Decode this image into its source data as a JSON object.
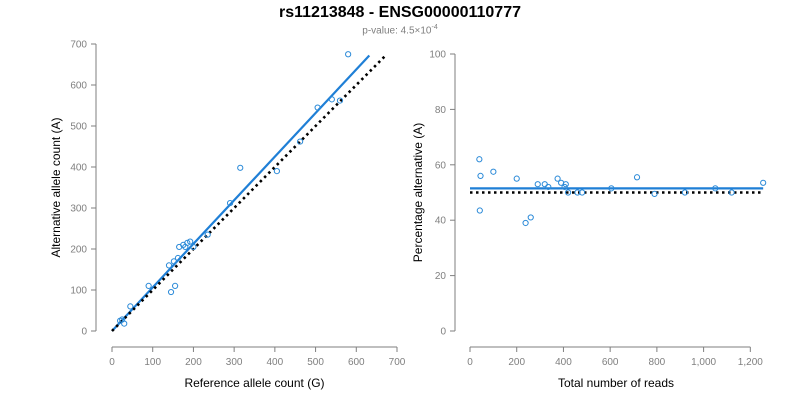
{
  "title": "rs11213848 - ENSG00000110777",
  "subtitle": {
    "prefix": "p-value: 4.5×10",
    "exponent": "-4"
  },
  "colors": {
    "points": "#2b8ad8",
    "fit_line": "#1f7fd6",
    "reference_line": "#000000",
    "axis": "#7f7f7f"
  },
  "chart_data": [
    {
      "type": "scatter",
      "xlabel": "Reference allele count (G)",
      "ylabel": "Alternative allele count (A)",
      "xlim": [
        0,
        700
      ],
      "ylim": [
        0,
        700
      ],
      "xticks": [
        0,
        100,
        200,
        300,
        400,
        500,
        600,
        700
      ],
      "yticks": [
        0,
        100,
        200,
        300,
        400,
        500,
        600,
        700
      ],
      "xtick_labels": [
        "0",
        "100",
        "200",
        "300",
        "400",
        "500",
        "600",
        "700"
      ],
      "ytick_labels": [
        "0",
        "100",
        "200",
        "300",
        "400",
        "500",
        "600",
        "700"
      ],
      "grid": false,
      "points": [
        {
          "x": 20,
          "y": 25
        },
        {
          "x": 25,
          "y": 28
        },
        {
          "x": 30,
          "y": 18
        },
        {
          "x": 45,
          "y": 60
        },
        {
          "x": 90,
          "y": 110
        },
        {
          "x": 140,
          "y": 160
        },
        {
          "x": 145,
          "y": 95
        },
        {
          "x": 152,
          "y": 170
        },
        {
          "x": 155,
          "y": 110
        },
        {
          "x": 162,
          "y": 178
        },
        {
          "x": 165,
          "y": 205
        },
        {
          "x": 175,
          "y": 210
        },
        {
          "x": 180,
          "y": 205
        },
        {
          "x": 185,
          "y": 215
        },
        {
          "x": 192,
          "y": 218
        },
        {
          "x": 200,
          "y": 205
        },
        {
          "x": 235,
          "y": 235
        },
        {
          "x": 290,
          "y": 312
        },
        {
          "x": 315,
          "y": 398
        },
        {
          "x": 405,
          "y": 390
        },
        {
          "x": 462,
          "y": 462
        },
        {
          "x": 505,
          "y": 545
        },
        {
          "x": 540,
          "y": 565
        },
        {
          "x": 560,
          "y": 562
        },
        {
          "x": 580,
          "y": 675
        }
      ],
      "fit_line": {
        "x": [
          0,
          632
        ],
        "y": [
          0,
          672
        ]
      },
      "reference_line": {
        "x": [
          0,
          672
        ],
        "y": [
          0,
          672
        ]
      }
    },
    {
      "type": "scatter",
      "xlabel": "Total number of reads",
      "ylabel": "Percentage alternative (A)",
      "xlim": [
        0,
        1250
      ],
      "ylim": [
        0,
        100
      ],
      "xticks": [
        0,
        200,
        400,
        600,
        800,
        1000,
        1200
      ],
      "yticks": [
        0,
        20,
        40,
        60,
        80,
        100
      ],
      "xtick_labels": [
        "0",
        "200",
        "400",
        "600",
        "800",
        "1,000",
        "1,200"
      ],
      "ytick_labels": [
        "0",
        "20",
        "40",
        "60",
        "80",
        "100"
      ],
      "grid": false,
      "points": [
        {
          "x": 40,
          "y": 62
        },
        {
          "x": 45,
          "y": 56
        },
        {
          "x": 42,
          "y": 43.5
        },
        {
          "x": 100,
          "y": 57.5
        },
        {
          "x": 200,
          "y": 55
        },
        {
          "x": 238,
          "y": 39
        },
        {
          "x": 260,
          "y": 41
        },
        {
          "x": 290,
          "y": 53
        },
        {
          "x": 320,
          "y": 53
        },
        {
          "x": 335,
          "y": 52
        },
        {
          "x": 375,
          "y": 55
        },
        {
          "x": 390,
          "y": 53.5
        },
        {
          "x": 405,
          "y": 52
        },
        {
          "x": 410,
          "y": 53
        },
        {
          "x": 420,
          "y": 50
        },
        {
          "x": 460,
          "y": 50
        },
        {
          "x": 480,
          "y": 50
        },
        {
          "x": 605,
          "y": 51.5
        },
        {
          "x": 715,
          "y": 55.5
        },
        {
          "x": 790,
          "y": 49.5
        },
        {
          "x": 920,
          "y": 50
        },
        {
          "x": 1050,
          "y": 51.5
        },
        {
          "x": 1120,
          "y": 50
        },
        {
          "x": 1255,
          "y": 53.5
        }
      ],
      "fit_line": {
        "x": [
          0,
          1255
        ],
        "y": [
          51.5,
          51.5
        ]
      },
      "reference_line": {
        "x": [
          0,
          1255
        ],
        "y": [
          50,
          50
        ]
      }
    }
  ]
}
